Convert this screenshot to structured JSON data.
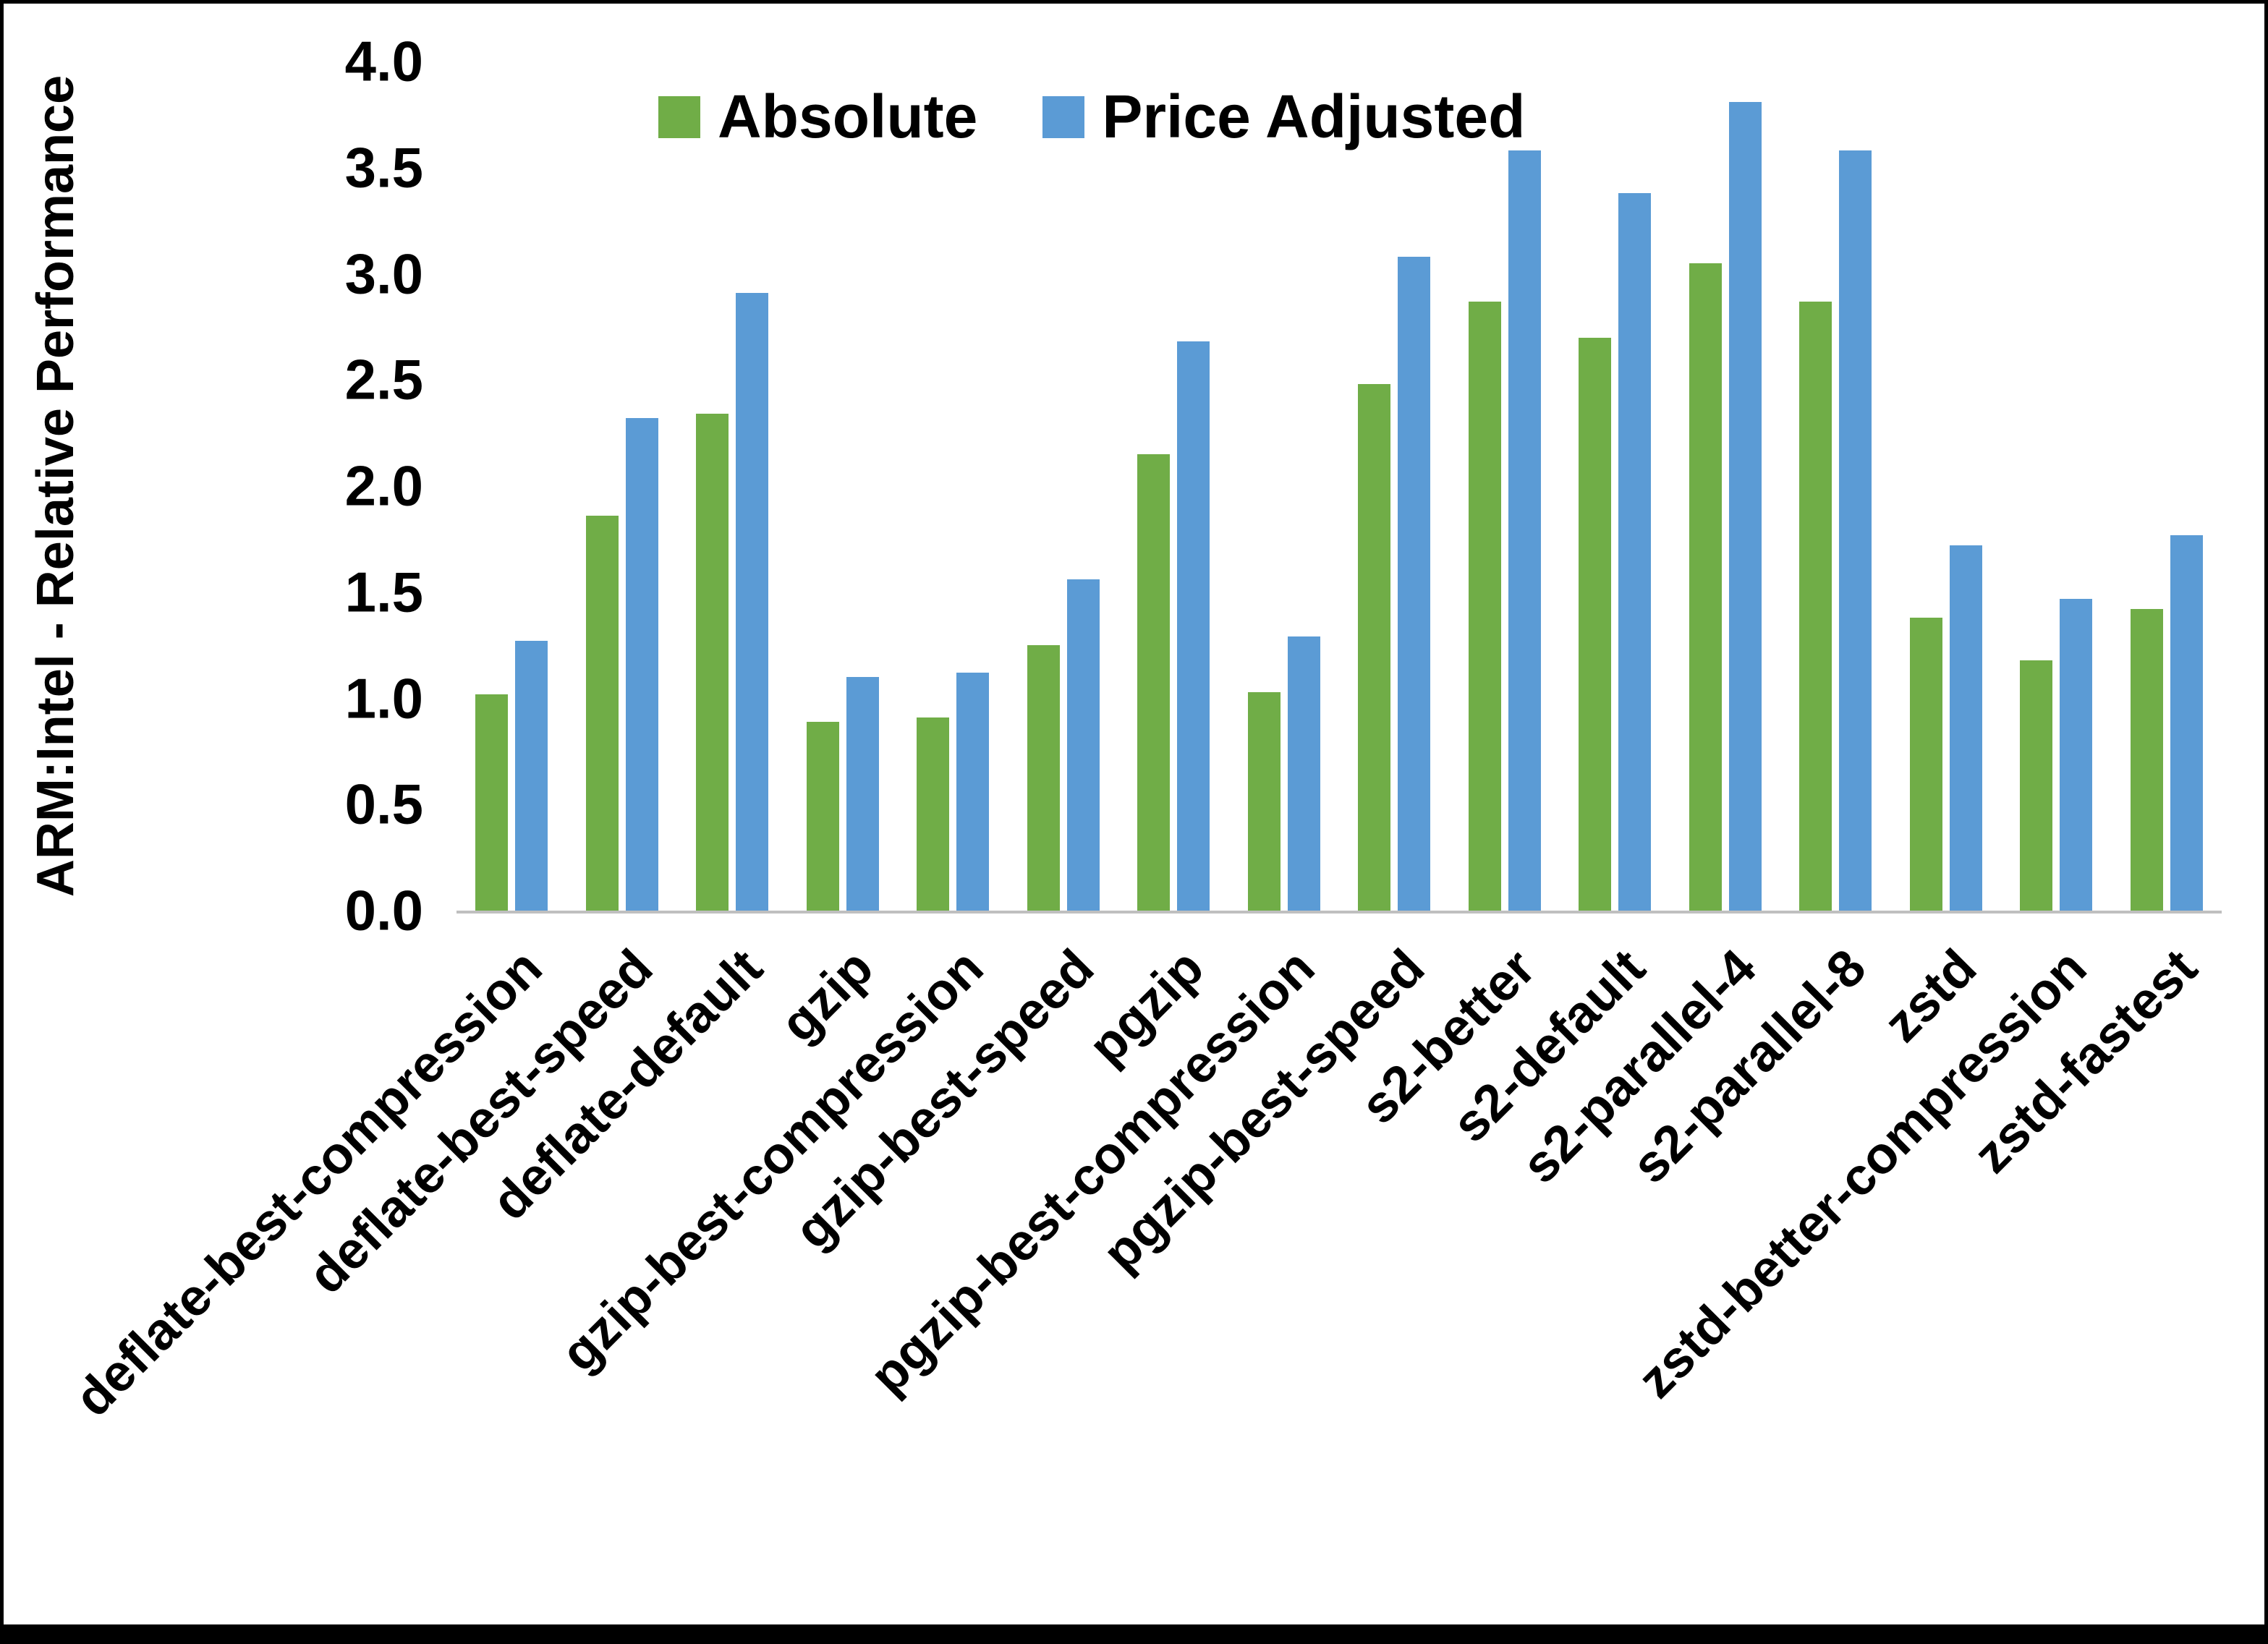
{
  "chart_data": {
    "type": "bar",
    "title": "",
    "ylabel": "ARM:Intel - Relative Performance",
    "xlabel": "",
    "ylim": [
      0,
      4
    ],
    "ytick_step": 0.5,
    "grid": false,
    "legend_position": "top",
    "categories": [
      "deflate-best-compression",
      "deflate-best-speed",
      "deflate-default",
      "gzip",
      "gzip-best-compression",
      "gzip-best-speed",
      "pgzip",
      "pgzip-best-compression",
      "pgzip-best-speed",
      "s2-better",
      "s2-default",
      "s2-parallel-4",
      "s2-parallel-8",
      "zstd",
      "zstd-better-compression",
      "zstd-fastest"
    ],
    "series": [
      {
        "name": "Absolute",
        "color": "#70AD47",
        "values": [
          1.02,
          1.86,
          2.34,
          0.89,
          0.91,
          1.25,
          2.15,
          1.03,
          2.48,
          2.87,
          2.7,
          3.05,
          2.87,
          1.38,
          1.18,
          1.42
        ]
      },
      {
        "name": "Price Adjusted",
        "color": "#5B9BD5",
        "values": [
          1.27,
          2.32,
          2.91,
          1.1,
          1.12,
          1.56,
          2.68,
          1.29,
          3.08,
          3.58,
          3.38,
          3.81,
          3.58,
          1.72,
          1.47,
          1.77
        ]
      }
    ]
  }
}
